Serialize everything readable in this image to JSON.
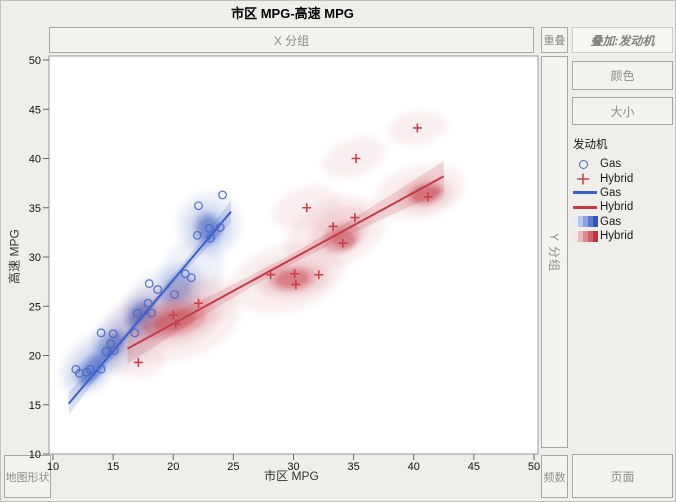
{
  "header": {
    "title": "市区 MPG-高速 MPG"
  },
  "drop_zones": {
    "x_group": "X 分组",
    "overlap": "重叠",
    "overlay": "叠加:发动机",
    "color": "颜色",
    "size": "大小",
    "y_group": "Y 分组",
    "map_shape": "地图形状",
    "freq": "频数",
    "page": "页面"
  },
  "legend": {
    "title": "发动机",
    "items": [
      {
        "label": "Gas",
        "swatch": "circle",
        "color": "#4868c8"
      },
      {
        "label": "Hybrid",
        "swatch": "plus",
        "color": "#c8424e"
      },
      {
        "label": "Gas",
        "swatch": "line",
        "color": "#3c60c8"
      },
      {
        "label": "Hybrid",
        "swatch": "line",
        "color": "#c43b48"
      },
      {
        "label": "Gas",
        "swatch": "gradient",
        "color": "#2f55c0"
      },
      {
        "label": "Hybrid",
        "swatch": "gradient",
        "color": "#c03340"
      }
    ]
  },
  "colors": {
    "page_bg": "#efeeeb",
    "plot_bg": "#ffffff",
    "plot_border": "#999999",
    "tick": "#666666",
    "tick_label": "#111111",
    "gas": "#3c60c8",
    "hybrid": "#c43b48"
  },
  "chart_data": {
    "type": "scatter",
    "title": "市区 MPG-高速 MPG",
    "xlabel": "市区 MPG",
    "ylabel": "高速 MPG",
    "xlim": [
      10,
      50
    ],
    "ylim": [
      10,
      50
    ],
    "xticks": [
      10,
      15,
      20,
      25,
      30,
      35,
      40,
      45,
      50
    ],
    "yticks": [
      10,
      15,
      20,
      25,
      30,
      35,
      40,
      45,
      50
    ],
    "grid": false,
    "legend_position": "right",
    "series": [
      {
        "name": "Gas",
        "marker": "circle",
        "color": "#4868c8",
        "points": [
          [
            11.9,
            18.6
          ],
          [
            12.2,
            18.2
          ],
          [
            12.8,
            18.3
          ],
          [
            13.1,
            18.6
          ],
          [
            14,
            18.6
          ],
          [
            14,
            22.3
          ],
          [
            14.4,
            20.4
          ],
          [
            14.8,
            21.2
          ],
          [
            15.1,
            20.5
          ],
          [
            15,
            22.2
          ],
          [
            16.8,
            22.3
          ],
          [
            17,
            24.3
          ],
          [
            17.9,
            25.3
          ],
          [
            18.2,
            24.3
          ],
          [
            18,
            27.3
          ],
          [
            18.7,
            26.7
          ],
          [
            20.1,
            26.2
          ],
          [
            21,
            28.3
          ],
          [
            21.5,
            27.9
          ],
          [
            22,
            32.2
          ],
          [
            22.1,
            35.2
          ],
          [
            23,
            32.9
          ],
          [
            23.1,
            31.9
          ],
          [
            23.9,
            33
          ],
          [
            24.1,
            36.3
          ]
        ]
      },
      {
        "name": "Hybrid",
        "marker": "plus",
        "color": "#c8424e",
        "points": [
          [
            17.1,
            19.3
          ],
          [
            20,
            24.1
          ],
          [
            20.2,
            23.2
          ],
          [
            22.1,
            25.3
          ],
          [
            28.1,
            28.2
          ],
          [
            30.1,
            28.3
          ],
          [
            30.2,
            27.2
          ],
          [
            32.1,
            28.2
          ],
          [
            31.1,
            35
          ],
          [
            33.3,
            33.1
          ],
          [
            34.1,
            31.4
          ],
          [
            35.1,
            34
          ],
          [
            35.2,
            40
          ],
          [
            40.3,
            43.1
          ],
          [
            41.2,
            36.1
          ]
        ]
      }
    ],
    "fits": [
      {
        "name": "Gas",
        "color": "#3c60c8",
        "x1": 11.3,
        "y1": 15.1,
        "x2": 24.8,
        "y2": 34.6,
        "band_mid": 0.35,
        "band_end": 1.15,
        "band_opacity": 0.18
      },
      {
        "name": "Hybrid",
        "color": "#c43b48",
        "x1": 16.2,
        "y1": 20.7,
        "x2": 42.5,
        "y2": 38.2,
        "band_mid": 0.5,
        "band_end": 1.55,
        "band_opacity": 0.18
      }
    ],
    "densities": [
      {
        "name": "Gas",
        "color": "#3558be",
        "level_opacity": [
          0.08,
          0.14,
          0.26,
          0.44
        ],
        "blobs": [
          {
            "cx": 13,
            "cy": 19,
            "rx": 2.9,
            "ry": 2.5,
            "rot": -50,
            "level": 1
          },
          {
            "cx": 16,
            "cy": 21.8,
            "rx": 3.1,
            "ry": 2.8,
            "rot": -50,
            "level": 1
          },
          {
            "cx": 18.8,
            "cy": 25.3,
            "rx": 3.3,
            "ry": 3.0,
            "rot": -50,
            "level": 1
          },
          {
            "cx": 21.5,
            "cy": 28.5,
            "rx": 3.0,
            "ry": 2.9,
            "rot": -50,
            "level": 1
          },
          {
            "cx": 23,
            "cy": 33.3,
            "rx": 2.7,
            "ry": 3.3,
            "rot": -20,
            "level": 1
          },
          {
            "cx": 13,
            "cy": 18.7,
            "rx": 2.1,
            "ry": 1.8,
            "rot": -50,
            "level": 2
          },
          {
            "cx": 15,
            "cy": 21.2,
            "rx": 2.2,
            "ry": 2.0,
            "rot": -50,
            "level": 2
          },
          {
            "cx": 17.5,
            "cy": 24.2,
            "rx": 2.3,
            "ry": 2.1,
            "rot": -50,
            "level": 2
          },
          {
            "cx": 20.5,
            "cy": 27,
            "rx": 2.2,
            "ry": 2.0,
            "rot": -50,
            "level": 2
          },
          {
            "cx": 22.9,
            "cy": 33,
            "rx": 1.9,
            "ry": 2.4,
            "rot": -15,
            "level": 2
          },
          {
            "cx": 13.1,
            "cy": 18.6,
            "rx": 1.5,
            "ry": 1.2,
            "rot": -50,
            "level": 3
          },
          {
            "cx": 14.9,
            "cy": 21.1,
            "rx": 1.5,
            "ry": 1.3,
            "rot": -50,
            "level": 3
          },
          {
            "cx": 17.3,
            "cy": 24.2,
            "rx": 1.5,
            "ry": 1.3,
            "rot": -50,
            "level": 3
          },
          {
            "cx": 20.3,
            "cy": 26.8,
            "rx": 1.4,
            "ry": 1.2,
            "rot": -50,
            "level": 3
          },
          {
            "cx": 22.9,
            "cy": 32.9,
            "rx": 1.2,
            "ry": 1.7,
            "rot": -10,
            "level": 3
          },
          {
            "cx": 13.2,
            "cy": 18.5,
            "rx": 1.3,
            "ry": 0.8,
            "rot": -55,
            "level": 4
          },
          {
            "cx": 14.9,
            "cy": 21,
            "rx": 1.2,
            "ry": 0.7,
            "rot": -55,
            "level": 4
          },
          {
            "cx": 17.2,
            "cy": 24.2,
            "rx": 1.0,
            "ry": 0.7,
            "rot": -50,
            "level": 4
          },
          {
            "cx": 22.9,
            "cy": 32.9,
            "rx": 0.8,
            "ry": 1.2,
            "rot": -5,
            "level": 4
          }
        ]
      },
      {
        "name": "Hybrid",
        "color": "#c4404a",
        "level_opacity": [
          0.08,
          0.14,
          0.26,
          0.42
        ],
        "blobs": [
          {
            "cx": 20,
            "cy": 23.5,
            "rx": 5.6,
            "ry": 4.0,
            "rot": -12,
            "level": 1
          },
          {
            "cx": 29.5,
            "cy": 27.9,
            "rx": 4.8,
            "ry": 3.4,
            "rot": -15,
            "level": 1
          },
          {
            "cx": 33.5,
            "cy": 32.4,
            "rx": 4.4,
            "ry": 3.4,
            "rot": -25,
            "level": 1
          },
          {
            "cx": 40.5,
            "cy": 36.6,
            "rx": 3.8,
            "ry": 2.7,
            "rot": -15,
            "level": 1
          },
          {
            "cx": 35,
            "cy": 40.1,
            "rx": 2.7,
            "ry": 1.9,
            "rot": -20,
            "level": 1
          },
          {
            "cx": 40.3,
            "cy": 43.1,
            "rx": 2.5,
            "ry": 1.7,
            "rot": -10,
            "level": 1
          },
          {
            "cx": 31.1,
            "cy": 35,
            "rx": 2.9,
            "ry": 2.1,
            "rot": -15,
            "level": 1
          },
          {
            "cx": 22.3,
            "cy": 25.4,
            "rx": 3.2,
            "ry": 2.4,
            "rot": -20,
            "level": 1
          },
          {
            "cx": 17.1,
            "cy": 19.6,
            "rx": 2.3,
            "ry": 1.9,
            "rot": -10,
            "level": 1
          },
          {
            "cx": 20.1,
            "cy": 23.6,
            "rx": 3.7,
            "ry": 2.5,
            "rot": -12,
            "level": 2
          },
          {
            "cx": 29.9,
            "cy": 27.8,
            "rx": 3.1,
            "ry": 1.9,
            "rot": -5,
            "level": 2
          },
          {
            "cx": 33.9,
            "cy": 32.7,
            "rx": 2.7,
            "ry": 2.1,
            "rot": -30,
            "level": 2
          },
          {
            "cx": 41,
            "cy": 36.3,
            "rx": 2.3,
            "ry": 1.6,
            "rot": -10,
            "level": 2
          },
          {
            "cx": 20.1,
            "cy": 23.6,
            "rx": 2.7,
            "ry": 1.7,
            "rot": -12,
            "level": 3
          },
          {
            "cx": 29.9,
            "cy": 27.8,
            "rx": 2.0,
            "ry": 1.3,
            "rot": -5,
            "level": 3
          },
          {
            "cx": 34,
            "cy": 32,
            "rx": 1.6,
            "ry": 1.5,
            "rot": -20,
            "level": 3
          },
          {
            "cx": 41,
            "cy": 36.4,
            "rx": 1.5,
            "ry": 1.1,
            "rot": -10,
            "level": 3
          },
          {
            "cx": 20.1,
            "cy": 23.6,
            "rx": 1.8,
            "ry": 1.05,
            "rot": -12,
            "level": 4
          },
          {
            "cx": 29.9,
            "cy": 27.8,
            "rx": 1.4,
            "ry": 0.85,
            "rot": -5,
            "level": 4
          },
          {
            "cx": 34.1,
            "cy": 31.8,
            "rx": 1.0,
            "ry": 0.9,
            "rot": 0,
            "level": 4
          },
          {
            "cx": 41,
            "cy": 36.4,
            "rx": 1.2,
            "ry": 0.8,
            "rot": -10,
            "level": 4
          }
        ]
      }
    ]
  }
}
